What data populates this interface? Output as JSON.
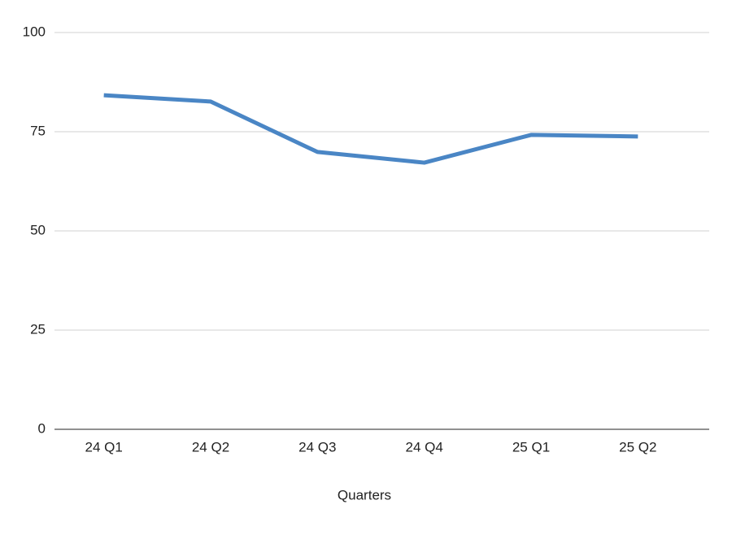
{
  "chart_data": {
    "type": "line",
    "x_label": "Quarters",
    "categories": [
      "24 Q1",
      "24 Q2",
      "24 Q3",
      "24 Q4",
      "25 Q1",
      "25 Q2"
    ],
    "values": [
      84.2,
      82.6,
      69.9,
      67.2,
      74.2,
      73.8
    ],
    "color": "#4a86c5",
    "ylim": [
      0,
      100
    ],
    "yticks": [
      0,
      25,
      50,
      75,
      100
    ],
    "grid": true
  }
}
